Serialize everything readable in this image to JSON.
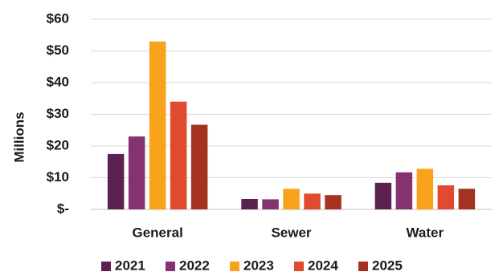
{
  "chart_data": {
    "type": "bar",
    "categories": [
      "General",
      "Sewer",
      "Water"
    ],
    "series": [
      {
        "name": "2021",
        "color": "#5b2150",
        "values": [
          17.5,
          3.3,
          8.4
        ]
      },
      {
        "name": "2022",
        "color": "#843370",
        "values": [
          23.0,
          3.2,
          11.7
        ]
      },
      {
        "name": "2023",
        "color": "#f9a21b",
        "values": [
          53.0,
          6.5,
          12.8
        ]
      },
      {
        "name": "2024",
        "color": "#e04a2f",
        "values": [
          34.0,
          5.0,
          7.6
        ]
      },
      {
        "name": "2025",
        "color": "#a3321e",
        "values": [
          26.7,
          4.5,
          6.5
        ]
      }
    ],
    "y_tick_values": [
      0,
      10,
      20,
      30,
      40,
      50,
      60
    ],
    "y_tick_labels": [
      "$-",
      "$10",
      "$20",
      "$30",
      "$40",
      "$50",
      "$60"
    ],
    "ylim": [
      0,
      60
    ],
    "ylabel": "Millions",
    "xlabel": "",
    "title": "",
    "grid": true,
    "legend_position": "bottom"
  }
}
